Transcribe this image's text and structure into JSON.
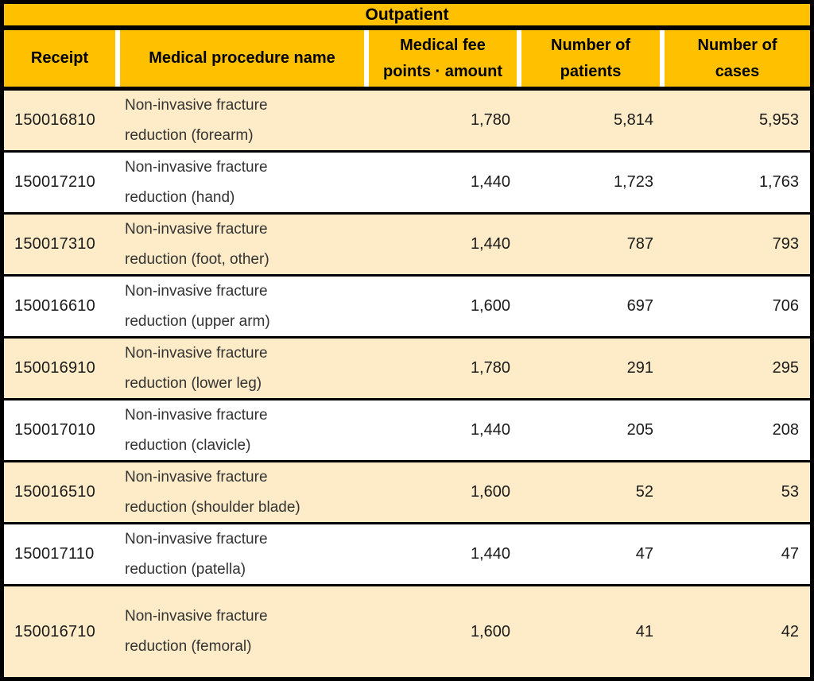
{
  "colors": {
    "header_bg": "#FFC000",
    "row_cream": "#FEECC8",
    "row_white": "#FFFFFF",
    "border": "#000000",
    "header_separator": "#FFFFFF",
    "header_text": "#000000",
    "body_text": "#1A1A1A",
    "procedure_text": "#333333"
  },
  "table": {
    "title": "Outpatient",
    "columns": [
      "Receipt",
      "Medical procedure name",
      "Medical fee\npoints · amount",
      "Number of\npatients",
      "Number of\ncases"
    ],
    "rows": [
      {
        "receipt": "150016810",
        "procedure": "Non-invasive fracture\nreduction (forearm)",
        "fee_points": "1,780",
        "patients": "5,814",
        "cases": "5,953"
      },
      {
        "receipt": "150017210",
        "procedure": "Non-invasive fracture\nreduction (hand)",
        "fee_points": "1,440",
        "patients": "1,723",
        "cases": "1,763"
      },
      {
        "receipt": "150017310",
        "procedure": "Non-invasive fracture\nreduction (foot, other)",
        "fee_points": "1,440",
        "patients": "787",
        "cases": "793"
      },
      {
        "receipt": "150016610",
        "procedure": "Non-invasive fracture\nreduction (upper arm)",
        "fee_points": "1,600",
        "patients": "697",
        "cases": "706"
      },
      {
        "receipt": "150016910",
        "procedure": "Non-invasive fracture\nreduction (lower leg)",
        "fee_points": "1,780",
        "patients": "291",
        "cases": "295"
      },
      {
        "receipt": "150017010",
        "procedure": "Non-invasive fracture\nreduction (clavicle)",
        "fee_points": "1,440",
        "patients": "205",
        "cases": "208"
      },
      {
        "receipt": "150016510",
        "procedure": "Non-invasive fracture\nreduction (shoulder blade)",
        "fee_points": "1,600",
        "patients": "52",
        "cases": "53"
      },
      {
        "receipt": "150017110",
        "procedure": "Non-invasive fracture\nreduction (patella)",
        "fee_points": "1,440",
        "patients": "47",
        "cases": "47"
      },
      {
        "receipt": "150016710",
        "procedure": "Non-invasive fracture\nreduction (femoral)",
        "fee_points": "1,600",
        "patients": "41",
        "cases": "42"
      }
    ]
  },
  "chart_data": {
    "type": "table",
    "title": "Outpatient",
    "columns": [
      "Receipt",
      "Medical procedure name",
      "Medical fee points · amount",
      "Number of patients",
      "Number of cases"
    ],
    "rows": [
      [
        "150016810",
        "Non-invasive fracture reduction (forearm)",
        1780,
        5814,
        5953
      ],
      [
        "150017210",
        "Non-invasive fracture reduction (hand)",
        1440,
        1723,
        1763
      ],
      [
        "150017310",
        "Non-invasive fracture reduction (foot, other)",
        1440,
        787,
        793
      ],
      [
        "150016610",
        "Non-invasive fracture reduction (upper arm)",
        1600,
        697,
        706
      ],
      [
        "150016910",
        "Non-invasive fracture reduction (lower leg)",
        1780,
        291,
        295
      ],
      [
        "150017010",
        "Non-invasive fracture reduction (clavicle)",
        1440,
        205,
        208
      ],
      [
        "150016510",
        "Non-invasive fracture reduction (shoulder blade)",
        1600,
        52,
        53
      ],
      [
        "150017110",
        "Non-invasive fracture reduction (patella)",
        1440,
        47,
        47
      ],
      [
        "150016710",
        "Non-invasive fracture reduction (femoral)",
        1600,
        41,
        42
      ]
    ],
    "layout_hints": {
      "alternating_row_colors": [
        "#FEECC8",
        "#FFFFFF"
      ],
      "header_color": "#FFC000",
      "numeric_columns_right_aligned": true
    }
  }
}
